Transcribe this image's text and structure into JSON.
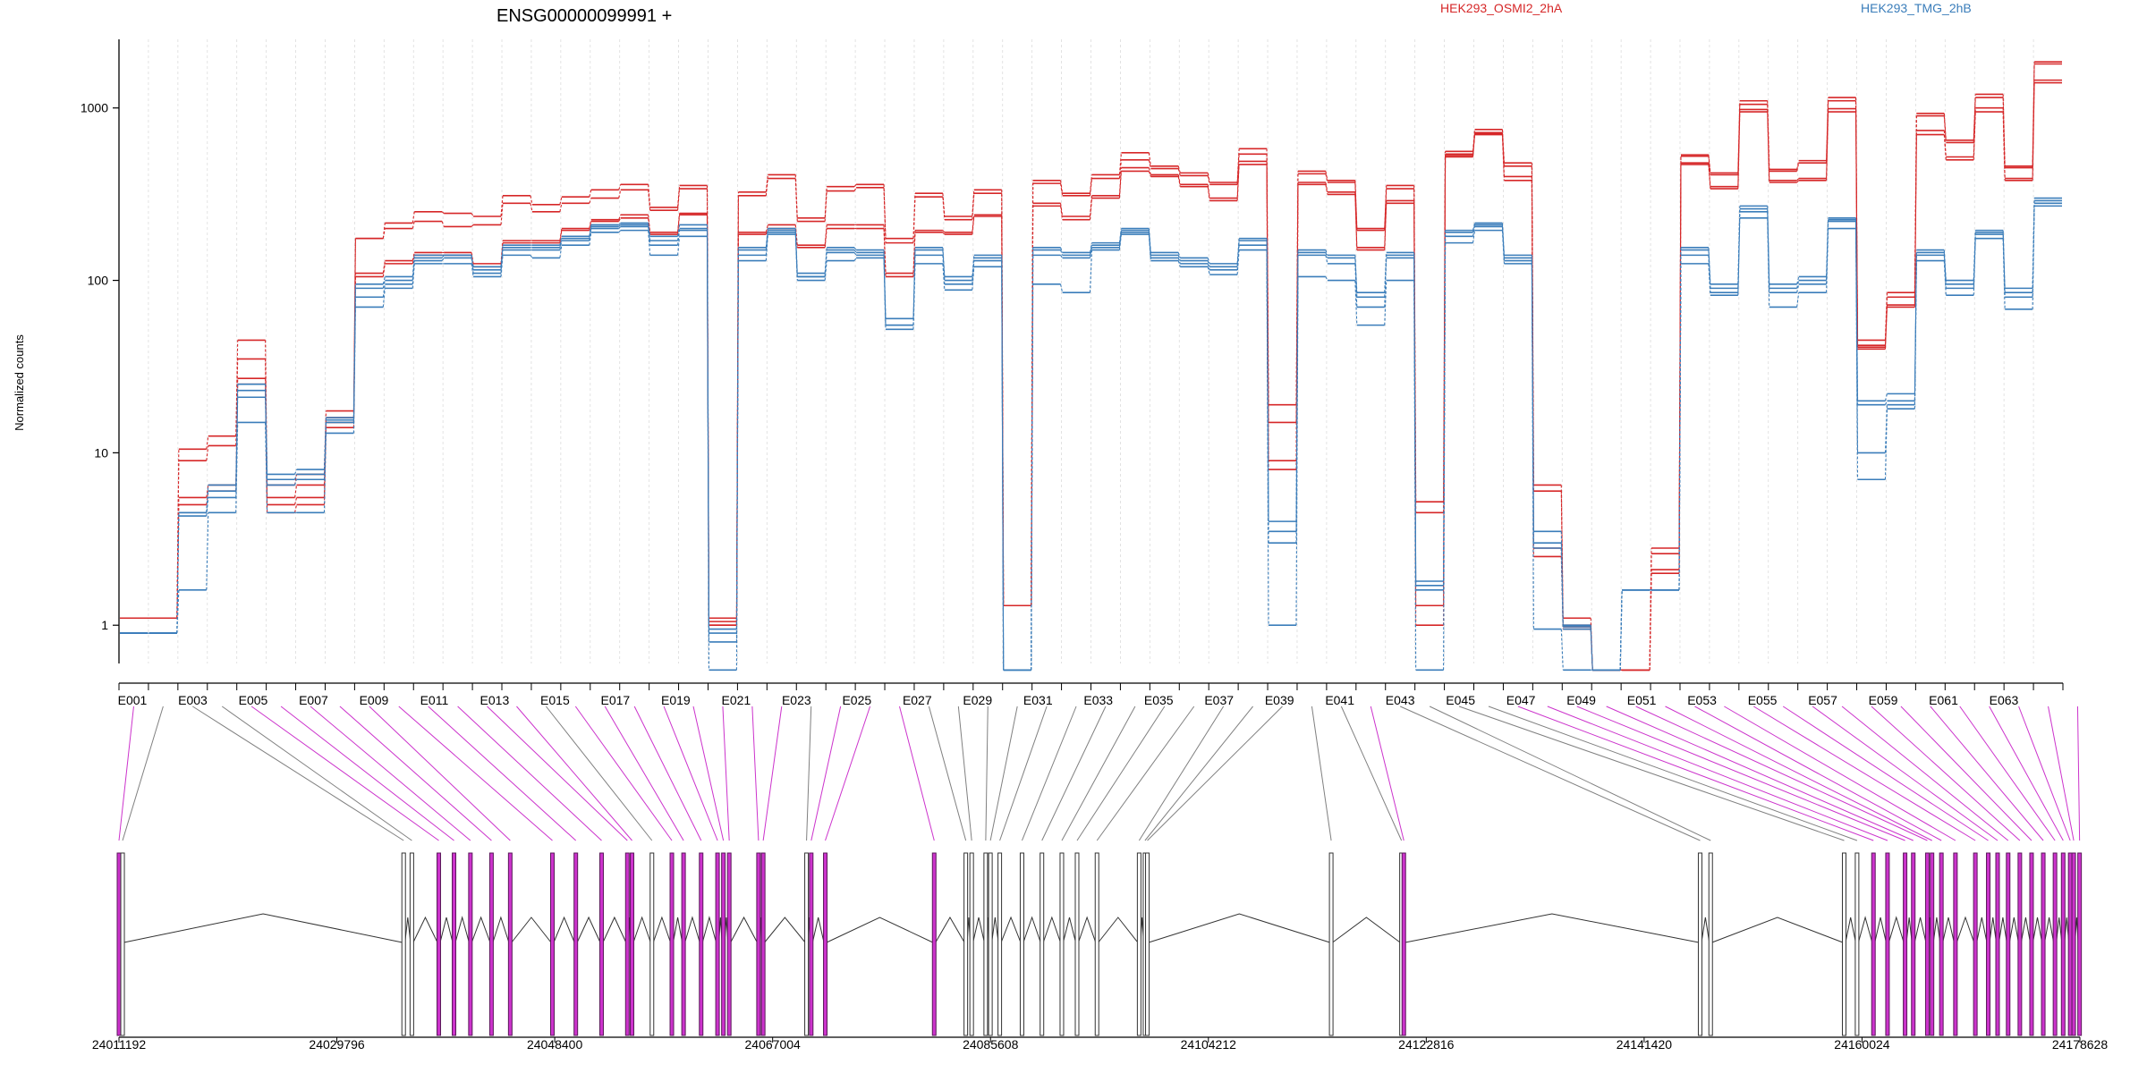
{
  "chart_data": {
    "type": "line",
    "title": "ENSG00000099991 +",
    "ylabel": "Normalized counts",
    "yscale": "log",
    "ylim": [
      0.6,
      2500
    ],
    "y_ticks": [
      {
        "label": "1",
        "value": 1
      },
      {
        "label": "10",
        "value": 10
      },
      {
        "label": "100",
        "value": 100
      },
      {
        "label": "1000",
        "value": 1000
      }
    ],
    "grid": true,
    "legend_position": "top",
    "exon_labels": [
      "E001",
      "E003",
      "E005",
      "E007",
      "E009",
      "E011",
      "E013",
      "E015",
      "E017",
      "E019",
      "E021",
      "E023",
      "E025",
      "E027",
      "E029",
      "E031",
      "E033",
      "E035",
      "E037",
      "E039",
      "E041",
      "E043",
      "E045",
      "E047",
      "E049",
      "E051",
      "E053",
      "E055",
      "E057",
      "E059",
      "E061",
      "E063"
    ],
    "series": [
      {
        "name": "HEK293_OSMI2_2hA",
        "color": "#d62728",
        "values": [
          1.1,
          1.1,
          10.5,
          12.5,
          45,
          6.5,
          7.5,
          17.5,
          175,
          215,
          250,
          245,
          235,
          310,
          275,
          305,
          335,
          360,
          265,
          355,
          1.1,
          325,
          410,
          230,
          350,
          360,
          175,
          320,
          235,
          335,
          1.3,
          380,
          320,
          410,
          550,
          460,
          420,
          370,
          580,
          19,
          430,
          380,
          200,
          355,
          5.2,
          560,
          750,
          480,
          6.5,
          1.1,
          0.55,
          0.55,
          2.8,
          535,
          420,
          1100,
          440,
          495,
          1150,
          45,
          85,
          930,
          650,
          1200,
          460,
          1850
        ]
      },
      {
        "name": "HEK293_OSMI2_2hA",
        "color": "#d62728",
        "values": [
          1.1,
          1.1,
          9,
          11,
          35,
          5.5,
          6.5,
          16,
          175,
          200,
          220,
          205,
          210,
          280,
          250,
          280,
          300,
          335,
          255,
          340,
          1.0,
          310,
          390,
          220,
          330,
          345,
          165,
          305,
          225,
          320,
          1.3,
          365,
          310,
          390,
          500,
          445,
          405,
          360,
          540,
          15,
          415,
          370,
          195,
          340,
          4.5,
          540,
          720,
          460,
          6,
          1.0,
          0.55,
          0.55,
          2.6,
          525,
          410,
          1050,
          430,
          480,
          1100,
          42,
          80,
          900,
          630,
          1150,
          450,
          1800
        ]
      },
      {
        "name": "HEK293_OSMI2_2hA",
        "color": "#d62728",
        "values": [
          1.1,
          1.1,
          5.0,
          6,
          25,
          4.5,
          5.0,
          14,
          105,
          125,
          140,
          140,
          120,
          165,
          165,
          195,
          220,
          230,
          185,
          240,
          1.0,
          185,
          200,
          155,
          200,
          200,
          105,
          190,
          185,
          235,
          1.3,
          270,
          225,
          300,
          430,
          400,
          350,
          290,
          470,
          8,
          360,
          315,
          150,
          280,
          1.0,
          520,
          700,
          380,
          2.5,
          0.95,
          0.55,
          0.55,
          2.0,
          470,
          340,
          950,
          370,
          380,
          950,
          40,
          70,
          700,
          500,
          950,
          380,
          1400
        ]
      },
      {
        "name": "HEK293_OSMI2_2hA",
        "color": "#d62728",
        "values": [
          1.1,
          1.1,
          5.5,
          6.5,
          27,
          5.0,
          5.5,
          15,
          110,
          130,
          145,
          145,
          125,
          170,
          170,
          200,
          225,
          240,
          190,
          245,
          1.05,
          190,
          210,
          160,
          210,
          210,
          110,
          195,
          190,
          240,
          1.3,
          280,
          235,
          310,
          450,
          410,
          360,
          300,
          490,
          9,
          370,
          325,
          155,
          290,
          1.3,
          530,
          710,
          400,
          2.8,
          0.98,
          0.55,
          0.55,
          2.1,
          480,
          350,
          980,
          380,
          390,
          990,
          41,
          72,
          740,
          520,
          1000,
          390,
          1450
        ]
      },
      {
        "name": "HEK293_TMG_2hB",
        "color": "#3a7dba",
        "values": [
          0.9,
          0.9,
          4.5,
          6.5,
          25,
          7.5,
          8,
          16,
          95,
          105,
          140,
          140,
          120,
          160,
          160,
          180,
          210,
          215,
          180,
          210,
          0.95,
          155,
          200,
          110,
          155,
          150,
          60,
          155,
          105,
          140,
          0.55,
          155,
          145,
          165,
          200,
          145,
          135,
          125,
          175,
          4,
          150,
          140,
          85,
          145,
          1.8,
          195,
          215,
          140,
          3.5,
          1.0,
          0.55,
          1.6,
          1.6,
          155,
          95,
          270,
          95,
          105,
          230,
          20,
          22,
          150,
          100,
          195,
          90,
          300
        ]
      },
      {
        "name": "HEK293_TMG_2hB",
        "color": "#3a7dba",
        "values": [
          0.9,
          0.9,
          4.5,
          6,
          23,
          7,
          7.5,
          15.5,
          90,
          100,
          135,
          140,
          115,
          155,
          155,
          175,
          205,
          210,
          170,
          200,
          0.9,
          150,
          195,
          105,
          150,
          145,
          55,
          150,
          100,
          135,
          0.55,
          150,
          140,
          160,
          195,
          140,
          130,
          120,
          170,
          3.5,
          145,
          135,
          80,
          140,
          1.7,
          190,
          210,
          135,
          3,
          0.98,
          0.55,
          1.6,
          1.6,
          150,
          90,
          260,
          90,
          100,
          225,
          19,
          20,
          145,
          95,
          190,
          85,
          290
        ]
      },
      {
        "name": "HEK293_TMG_2hB",
        "color": "#3a7dba",
        "values": [
          0.9,
          0.9,
          4.3,
          5.5,
          21,
          6.5,
          7,
          15,
          80,
          95,
          130,
          135,
          110,
          150,
          150,
          170,
          200,
          205,
          160,
          195,
          0.8,
          140,
          190,
          105,
          145,
          140,
          55,
          140,
          95,
          130,
          0.55,
          140,
          135,
          155,
          190,
          135,
          125,
          115,
          160,
          3,
          140,
          125,
          70,
          135,
          1.6,
          180,
          205,
          130,
          2.8,
          0.95,
          0.55,
          1.6,
          1.6,
          140,
          85,
          250,
          85,
          95,
          220,
          10,
          19,
          140,
          90,
          185,
          80,
          280
        ]
      },
      {
        "name": "HEK293_TMG_2hB",
        "color": "#3a7dba",
        "values": [
          0.9,
          0.9,
          1.6,
          4.5,
          15,
          4.5,
          4.5,
          13,
          70,
          90,
          125,
          125,
          105,
          140,
          135,
          160,
          190,
          195,
          140,
          180,
          0.55,
          130,
          185,
          100,
          130,
          135,
          52,
          125,
          88,
          120,
          0.55,
          95,
          85,
          150,
          185,
          130,
          120,
          108,
          150,
          1.0,
          105,
          100,
          55,
          100,
          0.55,
          165,
          195,
          125,
          0.95,
          0.55,
          0.55,
          1.6,
          1.6,
          125,
          82,
          230,
          70,
          85,
          200,
          7,
          18,
          130,
          82,
          175,
          68,
          270
        ]
      }
    ],
    "genomic_axis": {
      "tick_labels": [
        "24011192",
        "24029796",
        "24048400",
        "24067004",
        "24085608",
        "24104212",
        "24122816",
        "24141420",
        "24160024",
        "24178628"
      ],
      "range": [
        24011192,
        24178628
      ]
    },
    "exon_positions": [
      24011192,
      24011500,
      24035500,
      24036200,
      24038500,
      24039800,
      24041200,
      24043000,
      24044600,
      24048200,
      24050200,
      24052400,
      24054600,
      24055000,
      24056700,
      24058400,
      24059400,
      24060900,
      24062300,
      24062800,
      24063300,
      24065800,
      24066200,
      24069900,
      24070300,
      24071500,
      24080800,
      24083500,
      24084000,
      24085200,
      24085600,
      24086400,
      24088300,
      24090000,
      24091700,
      24093000,
      24094700,
      24098300,
      24098800,
      24099000,
      24114700,
      24120700,
      24120900,
      24146200,
      24147100,
      24158500,
      24159600,
      24161000,
      24162200,
      24163700,
      24164400,
      24165600,
      24166000,
      24166800,
      24168000,
      24169700,
      24170800,
      24171600,
      24172500,
      24173500,
      24174500,
      24175500,
      24176500,
      24177200,
      24177800,
      24178100,
      24178600
    ],
    "exon_colors": [
      "#cc33cc",
      "#808080",
      "#808080",
      "#808080",
      "#cc33cc",
      "#cc33cc",
      "#cc33cc",
      "#cc33cc",
      "#cc33cc",
      "#cc33cc",
      "#cc33cc",
      "#cc33cc",
      "#cc33cc",
      "#cc33cc",
      "#808080",
      "#cc33cc",
      "#cc33cc",
      "#cc33cc",
      "#cc33cc",
      "#cc33cc",
      "#cc33cc",
      "#cc33cc",
      "#cc33cc",
      "#808080",
      "#cc33cc",
      "#cc33cc",
      "#cc33cc",
      "#808080",
      "#808080",
      "#808080",
      "#808080",
      "#808080",
      "#808080",
      "#808080",
      "#808080",
      "#808080",
      "#808080",
      "#808080",
      "#808080",
      "#808080",
      "#808080",
      "#808080",
      "#cc33cc",
      "#808080",
      "#808080",
      "#808080",
      "#808080",
      "#cc33cc",
      "#cc33cc",
      "#cc33cc",
      "#cc33cc",
      "#cc33cc",
      "#cc33cc",
      "#cc33cc",
      "#cc33cc",
      "#cc33cc",
      "#cc33cc",
      "#cc33cc",
      "#cc33cc",
      "#cc33cc",
      "#cc33cc",
      "#cc33cc",
      "#cc33cc",
      "#cc33cc",
      "#cc33cc",
      "#cc33cc",
      "#cc33cc"
    ]
  }
}
